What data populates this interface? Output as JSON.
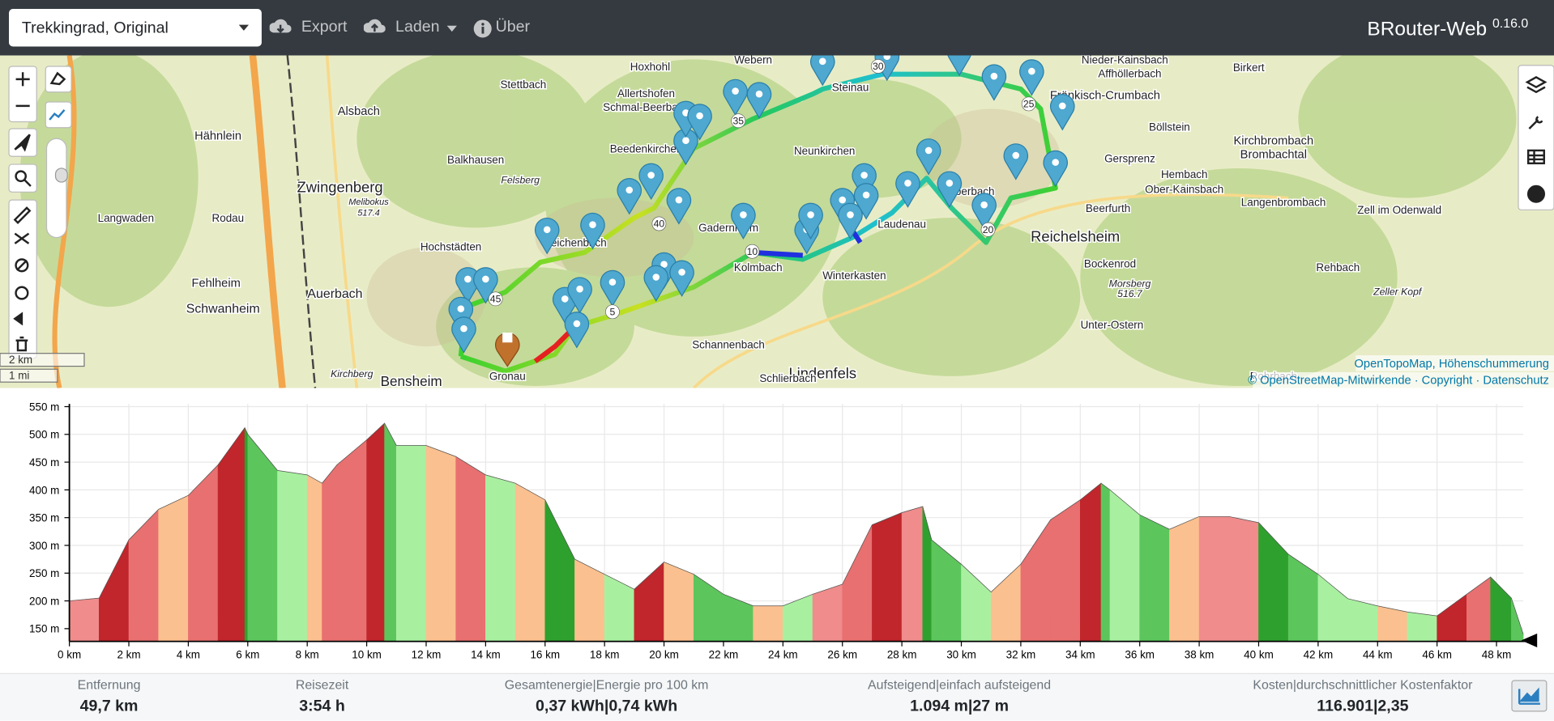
{
  "navbar": {
    "profile": "Trekkingrad, Original",
    "menu": [
      "Export",
      "Laden",
      "Über"
    ],
    "brand": "BRouter-Web",
    "version": "0.16.0"
  },
  "map": {
    "labels": [
      "Zwingenberg",
      "Melibokus",
      "517.4",
      "Hochstädten",
      "Auerbach",
      "Schwanheim",
      "Fehlheim",
      "Langwaden",
      "Rodau",
      "Hähnlein",
      "Alsbach",
      "Balkhausen",
      "Reichenbach",
      "Gadernheim",
      "Kolmbach",
      "Winterkasten",
      "Laudenau",
      "Reichelsheim",
      "Bockenrod",
      "Beerfurth",
      "Gersprenz",
      "Neunkirchen",
      "Steinau",
      "Schmal-Beerbach",
      "Allertshofen",
      "Beedenkirchen",
      "Hoxhohl",
      "Stettbach",
      "Webern",
      "Nieder-Kainsbach",
      "Affhöllerbach",
      "Birkert",
      "Böllstein",
      "Hembach",
      "Ober-Kainsbach",
      "Kirchbrombach",
      "Brombachtal",
      "Langenbrombach",
      "Zell im Odenwald",
      "Rehbach",
      "Morsberg",
      "516.7",
      "Zeller Kopf",
      "Unter-Ostern",
      "Rohrbach",
      "Lindenfels",
      "Schlierbach",
      "Schannenbach",
      "Gronau",
      "Bensheim",
      "Kirchberg",
      "Felsberg",
      "Eberbach",
      "Fränkisch-Crumbach"
    ],
    "route_km_labels": [
      "45",
      "40",
      "35",
      "30",
      "25",
      "20",
      "10",
      "5"
    ],
    "scale": [
      "2 km",
      "1 mi"
    ],
    "attribution": [
      "OpenTopoMap, Höhenschummerung",
      "© OpenStreetMap-Mitwirkende · Copyright · Datenschutz"
    ]
  },
  "chart_data": {
    "type": "area",
    "x": [
      0,
      1,
      2,
      3,
      4,
      5,
      5.9,
      6,
      7,
      8,
      8.5,
      9,
      10,
      10.6,
      11,
      12,
      13,
      14,
      15,
      16,
      17,
      18,
      19,
      20,
      21,
      22,
      23,
      24,
      25,
      26,
      27,
      28,
      28.7,
      29,
      30,
      31,
      32,
      33,
      34,
      34.7,
      35,
      36,
      37,
      38,
      39,
      40,
      41,
      42,
      43,
      44,
      45,
      46,
      47,
      47.8,
      48.5,
      48.9
    ],
    "values": [
      200,
      205,
      310,
      365,
      390,
      445,
      512,
      500,
      435,
      427,
      412,
      445,
      490,
      520,
      480,
      480,
      460,
      427,
      412,
      382,
      275,
      248,
      221,
      270,
      248,
      212,
      191,
      191,
      212,
      230,
      337,
      359,
      370,
      310,
      266,
      216,
      266,
      346,
      382,
      412,
      400,
      355,
      329,
      352,
      352,
      341,
      284,
      248,
      204,
      191,
      180,
      173,
      212,
      243,
      205,
      140
    ],
    "segment_colors": [
      "#f08c8c",
      "#c0262b",
      "#e87070",
      "#fbc08f",
      "#e87070",
      "#c0262b",
      "#2ea02e",
      "#5cc65c",
      "#a8f0a0",
      "#fbc08f",
      "#e87070",
      "#e87070",
      "#c0262b",
      "#5cc65c",
      "#a8f0a0",
      "#fbc08f",
      "#e87070",
      "#a8f0a0",
      "#fbc08f",
      "#2ea02e",
      "#fbc08f",
      "#a8f0a0",
      "#c0262b",
      "#fbc08f",
      "#5cc65c",
      "#5cc65c",
      "#fbc08f",
      "#a8f0a0",
      "#f08c8c",
      "#e87070",
      "#c0262b",
      "#f08c8c",
      "#2ea02e",
      "#5cc65c",
      "#a8f0a0",
      "#fbc08f",
      "#e87070",
      "#e87070",
      "#c0262b",
      "#5cc65c",
      "#a8f0a0",
      "#5cc65c",
      "#fbc08f",
      "#f08c8c",
      "#f08c8c",
      "#2ea02e",
      "#5cc65c",
      "#a8f0a0",
      "#a8f0a0",
      "#fbc08f",
      "#a8f0a0",
      "#c0262b",
      "#e87070",
      "#2ea02e",
      "#5cc65c"
    ],
    "xlim": [
      0,
      48.9
    ],
    "ylim": [
      127,
      555
    ],
    "xticks": [
      {
        "value": 0,
        "label": "0 km"
      },
      {
        "value": 2,
        "label": "2 km"
      },
      {
        "value": 4,
        "label": "4 km"
      },
      {
        "value": 6,
        "label": "6 km"
      },
      {
        "value": 8,
        "label": "8 km"
      },
      {
        "value": 10,
        "label": "10 km"
      },
      {
        "value": 12,
        "label": "12 km"
      },
      {
        "value": 14,
        "label": "14 km"
      },
      {
        "value": 16,
        "label": "16 km"
      },
      {
        "value": 18,
        "label": "18 km"
      },
      {
        "value": 20,
        "label": "20 km"
      },
      {
        "value": 22,
        "label": "22 km"
      },
      {
        "value": 24,
        "label": "24 km"
      },
      {
        "value": 26,
        "label": "26 km"
      },
      {
        "value": 28,
        "label": "28 km"
      },
      {
        "value": 30,
        "label": "30 km"
      },
      {
        "value": 32,
        "label": "32 km"
      },
      {
        "value": 34,
        "label": "34 km"
      },
      {
        "value": 36,
        "label": "36 km"
      },
      {
        "value": 38,
        "label": "38 km"
      },
      {
        "value": 40,
        "label": "40 km"
      },
      {
        "value": 42,
        "label": "42 km"
      },
      {
        "value": 44,
        "label": "44 km"
      },
      {
        "value": 46,
        "label": "46 km"
      },
      {
        "value": 48,
        "label": "48 km"
      }
    ],
    "yticks": [
      {
        "value": 150,
        "label": "150 m"
      },
      {
        "value": 200,
        "label": "200 m"
      },
      {
        "value": 250,
        "label": "250 m"
      },
      {
        "value": 300,
        "label": "300 m"
      },
      {
        "value": 350,
        "label": "350 m"
      },
      {
        "value": 400,
        "label": "400 m"
      },
      {
        "value": 450,
        "label": "450 m"
      },
      {
        "value": 500,
        "label": "500 m"
      },
      {
        "value": 550,
        "label": "550 m"
      }
    ],
    "grid": true
  },
  "stats": [
    {
      "label": "Entfernung",
      "value": "49,7 km"
    },
    {
      "label": "Reisezeit",
      "value": "3:54 h"
    },
    {
      "label": "Gesamtenergie|Energie pro 100 km",
      "value": "0,37 kWh|0,74 kWh"
    },
    {
      "label": "Aufsteigend|einfach aufsteigend",
      "value": "1.094 m|27 m"
    },
    {
      "label": "Kosten|durchschnittlicher Kostenfaktor",
      "value": "116.901|2,35"
    }
  ]
}
